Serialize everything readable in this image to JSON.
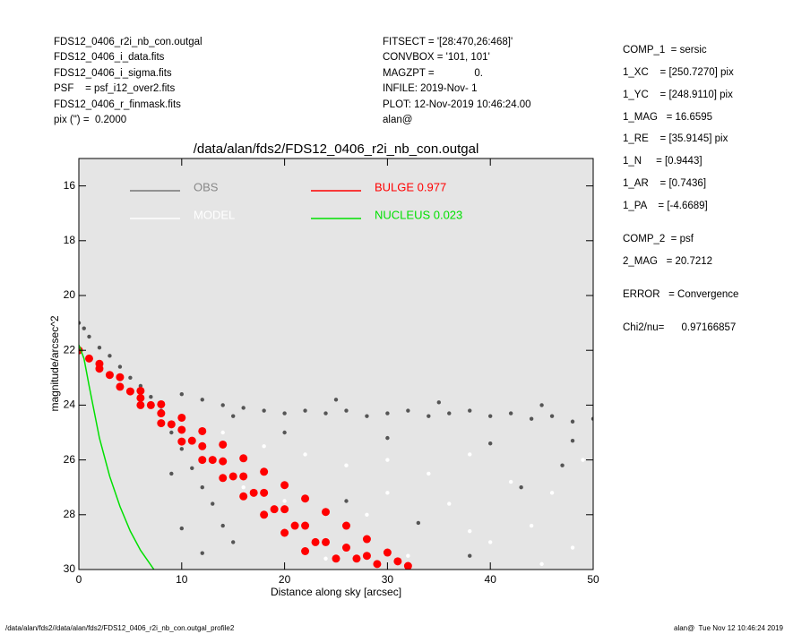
{
  "header": {
    "left": [
      "FDS12_0406_r2i_nb_con.outgal",
      "FDS12_0406_i_data.fits",
      "FDS12_0406_i_sigma.fits",
      "PSF    = psf_i12_over2.fits",
      "FDS12_0406_r_finmask.fits",
      "pix (\") =  0.2000"
    ],
    "middle": [
      "FITSECT = '[28:470,26:468]'",
      "CONVBOX = '101, 101'",
      "MAGZPT =              0.",
      "INFILE: 2019-Nov- 1",
      "PLOT: 12-Nov-2019 10:46:24.00",
      "alan@"
    ],
    "right": [
      "COMP_1  = sersic",
      "1_XC    = [250.7270] pix",
      "1_YC    = [248.9110] pix",
      "1_MAG   = 16.6595",
      "1_RE    = [35.9145] pix",
      "1_N     = [0.9443]",
      "1_AR    = [0.7436]",
      "1_PA    = [-4.6689]",
      "COMP_2  = psf",
      "2_MAG   = 20.7212",
      "ERROR   = Convergence",
      "Chi2/nu=      0.97166857"
    ]
  },
  "footer": {
    "left": "/data/alan/fds2//data/alan/fds2/FDS12_0406_r2i_nb_con.outgal_profile2",
    "right": "alan@  Tue Nov 12 10:46:24 2019"
  },
  "chart_data": {
    "type": "scatter",
    "title": "/data/alan/fds2/FDS12_0406_r2i_nb_con.outgal",
    "xlabel": "Distance along sky [arcsec]",
    "ylabel": "magnitude/arcsec^2",
    "xlim": [
      0,
      50
    ],
    "ylim": [
      15,
      30
    ],
    "y_inverted": true,
    "xticks": [
      0,
      10,
      20,
      30,
      40,
      50
    ],
    "yticks": [
      16,
      18,
      20,
      22,
      24,
      26,
      28,
      30
    ],
    "background": "#e5e5e5",
    "series": [
      {
        "name": "OBS",
        "color": "#555555",
        "mode": "points",
        "x": [
          0,
          0.5,
          1,
          2,
          3,
          4,
          5,
          6,
          7,
          8,
          9,
          10,
          11,
          12,
          13,
          14,
          9,
          10,
          12,
          15,
          10,
          12,
          14,
          16,
          18,
          20,
          22,
          24,
          26,
          28,
          30,
          32,
          34,
          36,
          38,
          40,
          42,
          44,
          46,
          48,
          50,
          15,
          25,
          35,
          45,
          20,
          30,
          40,
          48,
          18,
          26,
          33,
          43,
          38,
          23,
          47
        ],
        "y": [
          21.0,
          21.2,
          21.5,
          21.9,
          22.2,
          22.6,
          23.0,
          23.3,
          23.7,
          24.2,
          25.0,
          25.6,
          26.3,
          27.0,
          27.6,
          28.4,
          26.5,
          28.5,
          29.4,
          29.0,
          23.6,
          23.8,
          24.0,
          24.1,
          24.2,
          24.3,
          24.2,
          24.3,
          24.2,
          24.4,
          24.3,
          24.2,
          24.4,
          24.3,
          24.2,
          24.4,
          24.3,
          24.5,
          24.4,
          24.6,
          24.5,
          24.4,
          23.8,
          23.9,
          24.0,
          25.0,
          25.2,
          25.4,
          25.3,
          26.5,
          27.5,
          28.3,
          27.0,
          29.5,
          29.0,
          26.2
        ]
      },
      {
        "name": "MODEL",
        "color": "#ffffff",
        "mode": "points",
        "x": [
          14,
          18,
          22,
          26,
          30,
          34,
          38,
          42,
          46,
          49,
          20,
          28,
          36,
          44,
          48,
          32,
          40,
          24,
          16,
          45,
          38,
          30
        ],
        "y": [
          25.0,
          25.5,
          25.8,
          26.2,
          26.0,
          26.5,
          25.8,
          26.8,
          27.2,
          26.0,
          27.5,
          28.0,
          27.6,
          28.4,
          29.2,
          29.5,
          29.0,
          29.6,
          27.0,
          29.8,
          28.6,
          27.2
        ]
      },
      {
        "name": "BULGE  0.977",
        "color": "#ff0000",
        "mode": "points",
        "x": [
          0,
          1,
          2,
          2,
          3,
          4,
          4,
          5,
          6,
          6,
          6,
          7,
          8,
          8,
          8,
          9,
          10,
          10,
          10,
          11,
          12,
          12,
          12,
          13,
          14,
          14,
          14,
          15,
          16,
          16,
          16,
          17,
          18,
          18,
          18,
          19,
          20,
          20,
          20,
          21,
          22,
          22,
          22,
          23,
          24,
          24,
          25,
          26,
          26,
          27,
          28,
          28,
          29,
          30,
          31,
          32
        ],
        "y": [
          22.0,
          22.3,
          22.49,
          22.67,
          22.9,
          22.98,
          23.33,
          23.5,
          23.48,
          23.74,
          24.0,
          24.0,
          23.97,
          24.3,
          24.66,
          24.7,
          24.46,
          24.9,
          25.33,
          25.3,
          24.95,
          25.5,
          26.0,
          26.0,
          25.44,
          26.05,
          26.66,
          26.6,
          25.94,
          26.6,
          27.33,
          27.2,
          26.43,
          27.2,
          28.0,
          27.8,
          26.92,
          27.8,
          28.66,
          28.4,
          27.41,
          28.4,
          29.33,
          29.0,
          27.9,
          29.0,
          29.6,
          28.4,
          29.2,
          29.6,
          28.89,
          29.5,
          29.8,
          29.38,
          29.7,
          29.87
        ]
      },
      {
        "name": "NUCLEUS  0.023",
        "color": "#00e000",
        "mode": "line",
        "x": [
          0,
          0.5,
          1,
          2,
          3,
          4,
          5,
          6,
          7.3
        ],
        "y": [
          21.8,
          22.3,
          23.3,
          25.2,
          26.6,
          27.7,
          28.6,
          29.3,
          30
        ]
      }
    ]
  }
}
